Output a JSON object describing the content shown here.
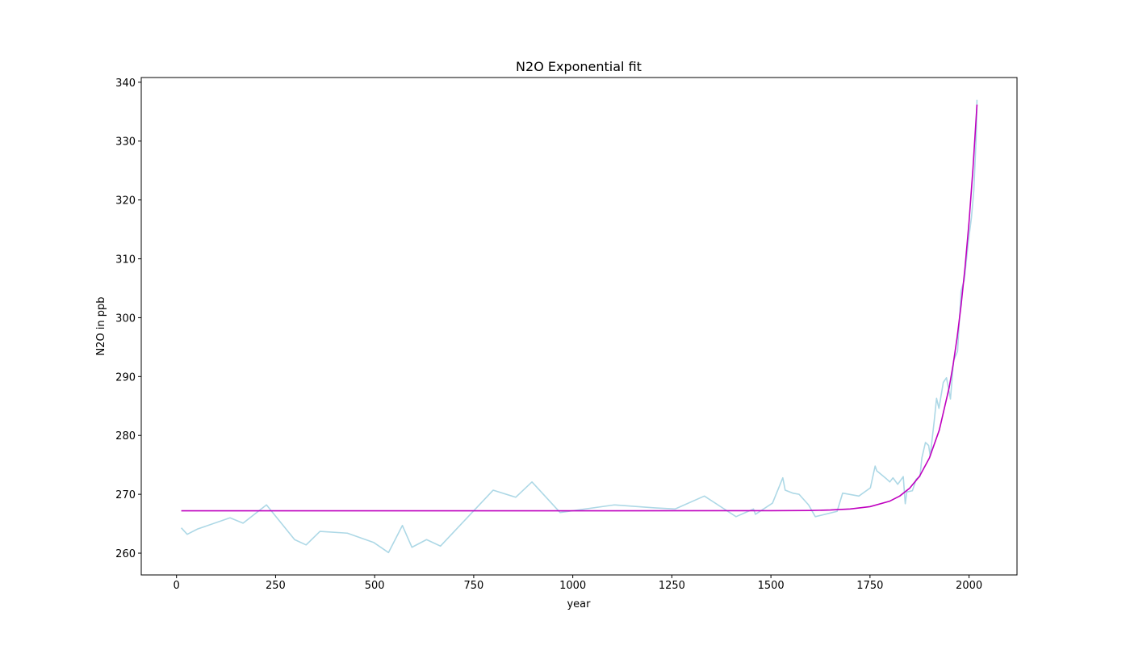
{
  "chart_data": {
    "type": "line",
    "title": "N2O Exponential fit",
    "x_label": "year",
    "y_label": "N2O in ppb",
    "xlim": [
      -89,
      2121
    ],
    "ylim": [
      256.3,
      340.8
    ],
    "xticks": [
      0,
      250,
      500,
      750,
      1000,
      1250,
      1500,
      1750,
      2000
    ],
    "yticks": [
      260,
      270,
      280,
      290,
      300,
      310,
      320,
      330,
      340
    ],
    "grid": false,
    "series": [
      {
        "color": "#add8e6",
        "x": [
          12,
          27,
          53,
          135,
          168,
          227,
          298,
          327,
          362,
          431,
          498,
          535,
          570,
          594,
          631,
          666,
          799,
          856,
          897,
          968,
          1105,
          1207,
          1258,
          1332,
          1412,
          1456,
          1461,
          1504,
          1530,
          1536,
          1555,
          1571,
          1595,
          1612,
          1667,
          1681,
          1722,
          1751,
          1763,
          1767,
          1792,
          1800,
          1808,
          1820,
          1834,
          1839,
          1843,
          1857,
          1867,
          1876,
          1881,
          1890,
          1898,
          1902,
          1912,
          1918,
          1924,
          1935,
          1943,
          1953,
          1961,
          1971,
          1980,
          1988,
          1998,
          2006,
          2012,
          2018,
          2020
        ],
        "values": [
          264.3,
          263.2,
          264.1,
          266.0,
          265.1,
          268.2,
          262.3,
          261.4,
          263.7,
          263.4,
          261.8,
          260.1,
          264.7,
          261.0,
          262.3,
          261.2,
          270.7,
          269.5,
          272.1,
          266.9,
          268.2,
          267.7,
          267.5,
          269.7,
          266.2,
          267.5,
          266.6,
          268.5,
          272.8,
          270.7,
          270.2,
          270.0,
          268.2,
          266.2,
          267.1,
          270.2,
          269.7,
          271.1,
          274.8,
          274.0,
          272.6,
          272.1,
          272.8,
          271.7,
          273.0,
          268.4,
          270.4,
          270.6,
          272.6,
          273.0,
          276.2,
          278.8,
          278.3,
          276.5,
          282.4,
          286.3,
          284.6,
          289.0,
          289.8,
          286.2,
          292.7,
          294.3,
          304.6,
          306.4,
          312.8,
          317.0,
          321.6,
          330.7,
          337.0
        ]
      },
      {
        "color": "#bf00bf",
        "x": [
          12,
          500,
          1000,
          1500,
          1600,
          1650,
          1700,
          1750,
          1800,
          1825,
          1850,
          1875,
          1900,
          1925,
          1950,
          1960,
          1970,
          1980,
          1990,
          2000,
          2010,
          2020
        ],
        "values": [
          267.2,
          267.2,
          267.2,
          267.21,
          267.25,
          267.33,
          267.5,
          267.9,
          268.84,
          269.7,
          271.03,
          273.06,
          276.17,
          280.93,
          288.19,
          292.08,
          296.69,
          302.16,
          308.63,
          316.31,
          325.42,
          336.2
        ]
      }
    ]
  }
}
